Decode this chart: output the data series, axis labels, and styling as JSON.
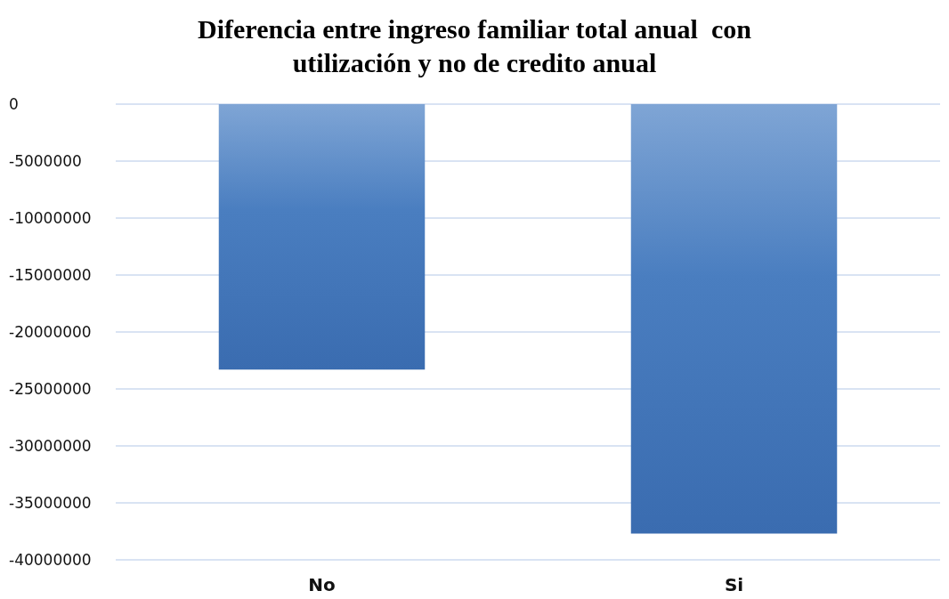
{
  "chart_data": {
    "type": "bar",
    "title": "Diferencia entre ingreso familiar total anual  con\nutilización y no de credito anual",
    "categories": [
      "No",
      "Si"
    ],
    "values": [
      -23300000,
      -37700000
    ],
    "color": "#4a7ec0",
    "ylim": [
      -40000000,
      0
    ],
    "yticks": [
      0,
      -5000000,
      -10000000,
      -15000000,
      -20000000,
      -25000000,
      -30000000,
      -35000000,
      -40000000
    ],
    "grid": "y"
  }
}
